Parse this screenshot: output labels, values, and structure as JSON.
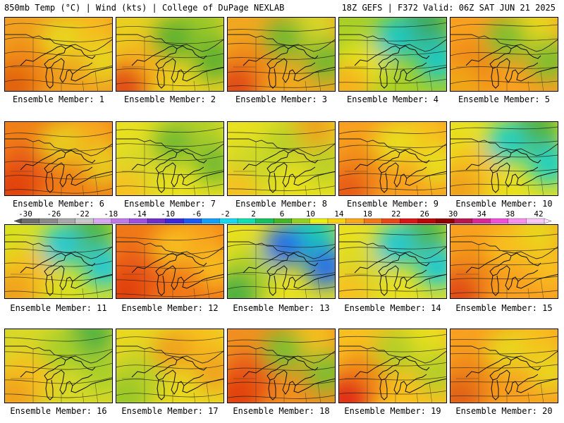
{
  "header": {
    "left": "850mb Temp (°C) | Wind (kts) | College of DuPage NEXLAB",
    "right": "18Z GEFS | F372 Valid: 06Z SAT JUN 21 2025"
  },
  "colorbar": {
    "labels": [
      "-30",
      "-26",
      "-22",
      "-18",
      "-14",
      "-10",
      "-6",
      "-2",
      "2",
      "6",
      "10",
      "14",
      "18",
      "22",
      "26",
      "30",
      "34",
      "38",
      "42"
    ],
    "colors": [
      "#6e6e6e",
      "#8a8a8a",
      "#a8a8a8",
      "#c8c8c8",
      "#d8a8f0",
      "#c07ae8",
      "#a050e0",
      "#7030c8",
      "#3c2ad8",
      "#1e5af0",
      "#10a0f8",
      "#18d8f0",
      "#10e0b0",
      "#18c060",
      "#48b428",
      "#94d020",
      "#e8f010",
      "#f8d010",
      "#f8a818",
      "#f07818",
      "#e84818",
      "#d81818",
      "#b80808",
      "#900000",
      "#b81850",
      "#d82898",
      "#f050d8",
      "#f890f0",
      "#f8c8f8"
    ]
  },
  "members": [
    {
      "label": "Ensemble Member: 1",
      "colors": [
        "#f0a020",
        "#f08818",
        "#e06010",
        "#f8b820",
        "#e8d820"
      ]
    },
    {
      "label": "Ensemble Member: 2",
      "colors": [
        "#e8d020",
        "#f8b020",
        "#e04818",
        "#98c828",
        "#58b030"
      ]
    },
    {
      "label": "Ensemble Member: 3",
      "colors": [
        "#f0a820",
        "#f08818",
        "#e04818",
        "#d8d828",
        "#70b830"
      ]
    },
    {
      "label": "Ensemble Member: 4",
      "colors": [
        "#a8d028",
        "#e8e020",
        "#f8b020",
        "#38a860",
        "#18c8c8"
      ]
    },
    {
      "label": "Ensemble Member: 5",
      "colors": [
        "#f8a020",
        "#f08818",
        "#f0a818",
        "#e8d820",
        "#78c030"
      ]
    },
    {
      "label": "Ensemble Member: 6",
      "colors": [
        "#f08018",
        "#e85818",
        "#e04010",
        "#f8a820",
        "#e8d020"
      ]
    },
    {
      "label": "Ensemble Member: 7",
      "colors": [
        "#e8e020",
        "#d8d828",
        "#f8c020",
        "#b0d028",
        "#70b830"
      ]
    },
    {
      "label": "Ensemble Member: 8",
      "colors": [
        "#e8e020",
        "#c8d828",
        "#f8c020",
        "#f0a020",
        "#b8d028"
      ]
    },
    {
      "label": "Ensemble Member: 9",
      "colors": [
        "#f8a020",
        "#f08818",
        "#e85818",
        "#f8c020",
        "#e8e020"
      ]
    },
    {
      "label": "Ensemble Member: 10",
      "colors": [
        "#e8e020",
        "#f8c020",
        "#f0a020",
        "#48b040",
        "#18d0c8"
      ]
    },
    {
      "label": "Ensemble Member: 11",
      "colors": [
        "#d8e020",
        "#f8c020",
        "#f0a020",
        "#48b448",
        "#20c8d8"
      ]
    },
    {
      "label": "Ensemble Member: 12",
      "colors": [
        "#f07818",
        "#e85818",
        "#e04010",
        "#f8a020",
        "#f8c020"
      ]
    },
    {
      "label": "Ensemble Member: 13",
      "colors": [
        "#e8e020",
        "#b0d028",
        "#48b040",
        "#18c8b8",
        "#1e6af0"
      ]
    },
    {
      "label": "Ensemble Member: 14",
      "colors": [
        "#e8e020",
        "#d8d828",
        "#f8c020",
        "#48b448",
        "#18c8d8"
      ]
    },
    {
      "label": "Ensemble Member: 15",
      "colors": [
        "#f8a020",
        "#f08818",
        "#e04818",
        "#e8d820",
        "#f8c020"
      ]
    },
    {
      "label": "Ensemble Member: 16",
      "colors": [
        "#d8d828",
        "#f8c020",
        "#f0a020",
        "#48b040",
        "#a8d028"
      ]
    },
    {
      "label": "Ensemble Member: 17",
      "colors": [
        "#e8d820",
        "#b8d028",
        "#98c828",
        "#f8c020",
        "#f0a020"
      ]
    },
    {
      "label": "Ensemble Member: 18",
      "colors": [
        "#f09020",
        "#e85818",
        "#e04010",
        "#f8c020",
        "#78c030"
      ]
    },
    {
      "label": "Ensemble Member: 19",
      "colors": [
        "#f8c020",
        "#f08818",
        "#e02818",
        "#e8e020",
        "#b0d028"
      ]
    },
    {
      "label": "Ensemble Member: 20",
      "colors": [
        "#f8a020",
        "#f08818",
        "#e06018",
        "#f8c020",
        "#e8d820"
      ]
    }
  ]
}
